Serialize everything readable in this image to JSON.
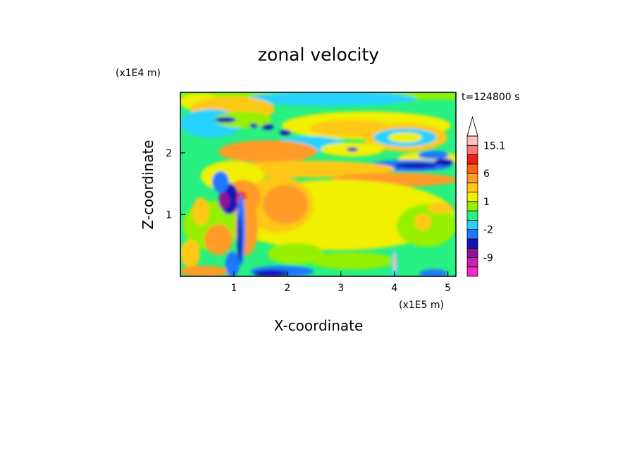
{
  "chart_data": {
    "type": "heatmap",
    "title": "zonal velocity",
    "xlabel": "X-coordinate",
    "ylabel": "Z-coordinate",
    "x_unit": "(x1E5 m)",
    "y_unit": "(x1E4 m)",
    "time_label": "t=124800 s",
    "xlim": [
      0,
      5.15
    ],
    "ylim": [
      0,
      2.98
    ],
    "x_ticks": [
      {
        "value": 1,
        "label": "1"
      },
      {
        "value": 2,
        "label": "2"
      },
      {
        "value": 3,
        "label": "3"
      },
      {
        "value": 4,
        "label": "4"
      },
      {
        "value": 5,
        "label": "5"
      }
    ],
    "y_ticks": [
      {
        "value": 1,
        "label": "1"
      },
      {
        "value": 2,
        "label": "2"
      }
    ],
    "colorbar": {
      "levels": [
        "<-12",
        "-12",
        "-9",
        "-6",
        "-4",
        "-2",
        "-1",
        "0",
        "1",
        "2",
        "4",
        "6",
        "9",
        "12",
        "15.1",
        ">15.1"
      ],
      "colors": [
        "#f02ac8",
        "#c81fb4",
        "#8c149a",
        "#1414b4",
        "#1e78ff",
        "#28d2ff",
        "#28f082",
        "#96f000",
        "#f0f000",
        "#ffc814",
        "#ff9b28",
        "#ff6414",
        "#f01e14",
        "#ff7878",
        "#ffc0c0",
        "#ffffff"
      ],
      "labels": [
        {
          "level": 15.1,
          "text": "15.1"
        },
        {
          "level": 6,
          "text": "6"
        },
        {
          "level": 1,
          "text": "1"
        },
        {
          "level": -2,
          "text": "-2"
        },
        {
          "level": -9,
          "text": "-9"
        }
      ]
    }
  }
}
